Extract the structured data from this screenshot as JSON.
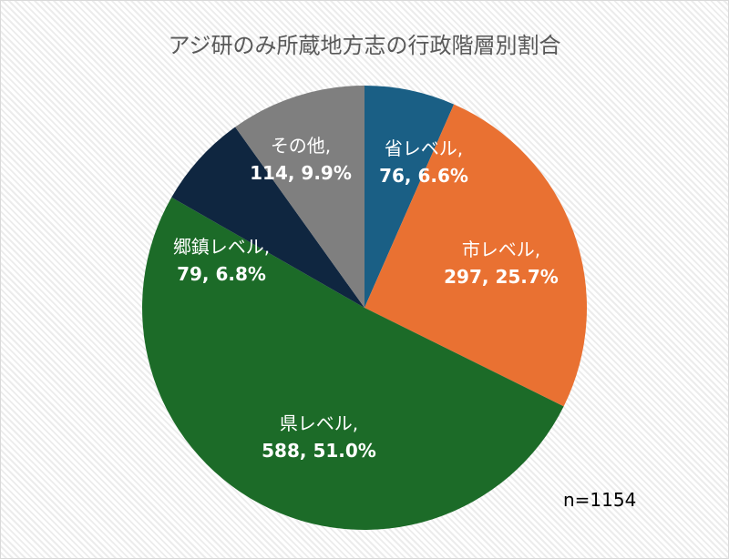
{
  "chart_data": {
    "type": "pie",
    "title": "アジ研のみ所蔵地方志の行政階層別割合",
    "annotation": "n=1154",
    "slices": [
      {
        "label": "省レベル",
        "value": 76,
        "percent": "6.6%",
        "color": "#1a5f85"
      },
      {
        "label": "市レベル",
        "value": 297,
        "percent": "25.7%",
        "color": "#e97132"
      },
      {
        "label": "県レベル",
        "value": 588,
        "percent": "51.0%",
        "color": "#1c6b28"
      },
      {
        "label": "郷鎮レベル",
        "value": 79,
        "percent": "6.8%",
        "color": "#0f2640"
      },
      {
        "label": "その他",
        "value": 114,
        "percent": "9.9%",
        "color": "#7f7f7f"
      }
    ],
    "total": 1154
  },
  "labels": [
    {
      "name": "省レベル,",
      "val": "76, 6.6%"
    },
    {
      "name": "市レベル,",
      "val": "297, 25.7%"
    },
    {
      "name": "県レベル,",
      "val": "588, 51.0%"
    },
    {
      "name": "郷鎮レベル,",
      "val": "79, 6.8%"
    },
    {
      "name": "その他,",
      "val": "114, 9.9%"
    }
  ]
}
